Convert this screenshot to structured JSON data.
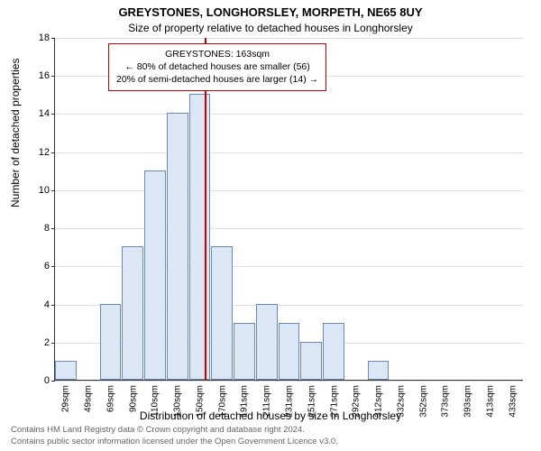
{
  "title": "GREYSTONES, LONGHORSLEY, MORPETH, NE65 8UY",
  "subtitle": "Size of property relative to detached houses in Longhorsley",
  "chart": {
    "type": "histogram",
    "ylabel": "Number of detached properties",
    "xlabel": "Distribution of detached houses by size in Longhorsley",
    "ylim": [
      0,
      18
    ],
    "yticks": [
      0,
      2,
      4,
      6,
      8,
      10,
      12,
      14,
      16,
      18
    ],
    "x_categories": [
      "29sqm",
      "49sqm",
      "69sqm",
      "90sqm",
      "110sqm",
      "130sqm",
      "150sqm",
      "170sqm",
      "191sqm",
      "211sqm",
      "231sqm",
      "251sqm",
      "271sqm",
      "292sqm",
      "312sqm",
      "332sqm",
      "352sqm",
      "373sqm",
      "393sqm",
      "413sqm",
      "433sqm"
    ],
    "values": [
      1,
      0,
      4,
      7,
      11,
      14,
      15,
      7,
      3,
      4,
      3,
      2,
      3,
      0,
      1,
      0,
      0,
      0,
      0,
      0,
      0
    ],
    "bar_fill": "#dce7f5",
    "bar_border": "#6a8bb8",
    "grid_color": "#e0e0e0",
    "background": "#ffffff",
    "refline_x_index": 6.7,
    "refline_color": "#cc0000",
    "annotation": {
      "line1": "GREYSTONES: 163sqm",
      "line2": "← 80% of detached houses are smaller (56)",
      "line3": "20% of semi-detached houses are larger (14) →",
      "border_color": "#cc0000"
    }
  },
  "footer": {
    "line1": "Contains HM Land Registry data © Crown copyright and database right 2024.",
    "line2": "Contains public sector information licensed under the Open Government Licence v3.0."
  }
}
